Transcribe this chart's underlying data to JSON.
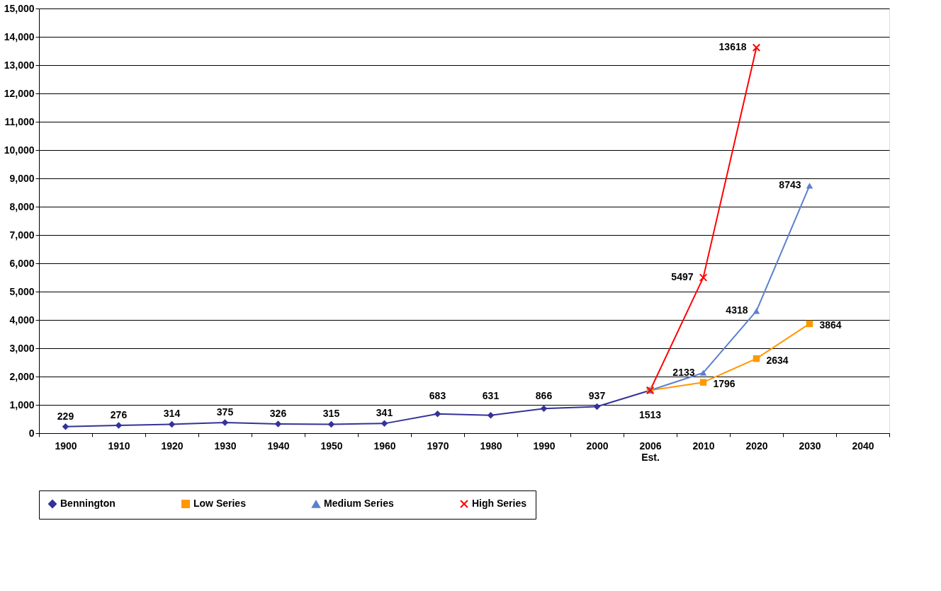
{
  "chart_data": {
    "type": "line",
    "categories": [
      "1900",
      "1910",
      "1920",
      "1930",
      "1940",
      "1950",
      "1960",
      "1970",
      "1980",
      "1990",
      "2000",
      "2006 Est.",
      "2010",
      "2020",
      "2030",
      "2040"
    ],
    "series": [
      {
        "name": "Bennington",
        "color": "#333399",
        "marker": "diamond",
        "values": [
          229,
          276,
          314,
          375,
          326,
          315,
          341,
          683,
          631,
          866,
          937,
          1513,
          null,
          null,
          null,
          null
        ],
        "value_labels": [
          "229",
          "276",
          "314",
          "375",
          "326",
          "315",
          "341",
          "683",
          "631",
          "866",
          "937",
          "1513",
          null,
          null,
          null,
          null
        ]
      },
      {
        "name": "Low Series",
        "color": "#ff9900",
        "marker": "square",
        "values": [
          null,
          null,
          null,
          null,
          null,
          null,
          null,
          null,
          null,
          null,
          null,
          1513,
          1796,
          2634,
          3864,
          null
        ],
        "value_labels": [
          null,
          null,
          null,
          null,
          null,
          null,
          null,
          null,
          null,
          null,
          null,
          null,
          "1796",
          "2634",
          "3864",
          null
        ]
      },
      {
        "name": "Medium Series",
        "color": "#5b7fd0",
        "marker": "triangle",
        "values": [
          null,
          null,
          null,
          null,
          null,
          null,
          null,
          null,
          null,
          null,
          null,
          1513,
          2133,
          4318,
          8743,
          null
        ],
        "value_labels": [
          null,
          null,
          null,
          null,
          null,
          null,
          null,
          null,
          null,
          null,
          null,
          null,
          "2133",
          "4318",
          "8743",
          null
        ]
      },
      {
        "name": "High Series",
        "color": "#ff0000",
        "marker": "cross",
        "values": [
          null,
          null,
          null,
          null,
          null,
          null,
          null,
          null,
          null,
          null,
          null,
          1513,
          5497,
          13618,
          null,
          null
        ],
        "value_labels": [
          null,
          null,
          null,
          null,
          null,
          null,
          null,
          null,
          null,
          null,
          null,
          null,
          "5497",
          "13618",
          null,
          null
        ]
      }
    ],
    "ylim": [
      0,
      15000
    ],
    "yticks": [
      {
        "value": 0,
        "label": "0"
      },
      {
        "value": 1000,
        "label": "1,000"
      },
      {
        "value": 2000,
        "label": "2,000"
      },
      {
        "value": 3000,
        "label": "3,000"
      },
      {
        "value": 4000,
        "label": "4,000"
      },
      {
        "value": 5000,
        "label": "5,000"
      },
      {
        "value": 6000,
        "label": "6,000"
      },
      {
        "value": 7000,
        "label": "7,000"
      },
      {
        "value": 8000,
        "label": "8,000"
      },
      {
        "value": 9000,
        "label": "9,000"
      },
      {
        "value": 10000,
        "label": "10,000"
      },
      {
        "value": 11000,
        "label": "11,000"
      },
      {
        "value": 12000,
        "label": "12,000"
      },
      {
        "value": 13000,
        "label": "13,000"
      },
      {
        "value": 14000,
        "label": "14,000"
      },
      {
        "value": 15000,
        "label": "15,000"
      }
    ],
    "grid": "y",
    "legend": "bottom"
  }
}
